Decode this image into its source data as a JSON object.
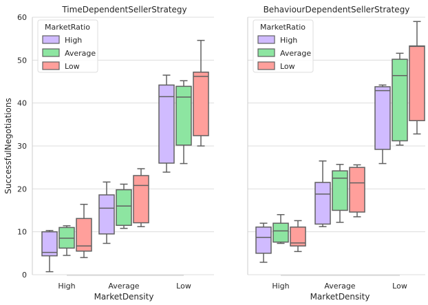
{
  "chart_data": {
    "type": "box",
    "ylabel": "SuccessfulNegotiations",
    "xlabel": "MarketDensity",
    "ylim": [
      0,
      60
    ],
    "yticks": [
      0,
      10,
      20,
      30,
      40,
      50,
      60
    ],
    "categories": [
      "High",
      "Average",
      "Low"
    ],
    "grid": "horizontal",
    "legend": {
      "title": "MarketRatio",
      "placement": "top-left",
      "entries": [
        "High",
        "Average",
        "Low"
      ]
    },
    "colors": {
      "High": "#d0bbff",
      "Average": "#8de5a1",
      "Low": "#ff9f9b",
      "line": "#606060",
      "grid": "#dddddd"
    },
    "panels": [
      {
        "title": "TimeDependentSellerStrategy",
        "boxes": [
          {
            "density": "High",
            "ratio": "High",
            "min": 0.7,
            "q1": 4.4,
            "median": 5.2,
            "q3": 10.0,
            "max": 10.3
          },
          {
            "density": "High",
            "ratio": "Average",
            "min": 4.5,
            "q1": 6.2,
            "median": 8.5,
            "q3": 11.0,
            "max": 11.4
          },
          {
            "density": "High",
            "ratio": "Low",
            "min": 4.0,
            "q1": 5.5,
            "median": 6.7,
            "q3": 13.1,
            "max": 16.4
          },
          {
            "density": "Average",
            "ratio": "High",
            "min": 7.3,
            "q1": 9.5,
            "median": 15.5,
            "q3": 18.6,
            "max": 21.6
          },
          {
            "density": "Average",
            "ratio": "Average",
            "min": 10.8,
            "q1": 11.5,
            "median": 16.0,
            "q3": 19.8,
            "max": 21.1
          },
          {
            "density": "Average",
            "ratio": "Low",
            "min": 11.2,
            "q1": 12.1,
            "median": 20.8,
            "q3": 23.1,
            "max": 24.7
          },
          {
            "density": "Low",
            "ratio": "High",
            "min": 23.9,
            "q1": 26.0,
            "median": 41.5,
            "q3": 44.2,
            "max": 46.5
          },
          {
            "density": "Low",
            "ratio": "Average",
            "min": 25.9,
            "q1": 30.2,
            "median": 41.4,
            "q3": 43.9,
            "max": 45.2
          },
          {
            "density": "Low",
            "ratio": "Low",
            "min": 30.0,
            "q1": 32.4,
            "median": 46.2,
            "q3": 47.2,
            "max": 54.6
          }
        ]
      },
      {
        "title": "BehaviourDependentSellerStrategy",
        "boxes": [
          {
            "density": "High",
            "ratio": "High",
            "min": 2.9,
            "q1": 5.0,
            "median": 8.7,
            "q3": 11.1,
            "max": 12.0
          },
          {
            "density": "High",
            "ratio": "Average",
            "min": 7.3,
            "q1": 7.6,
            "median": 10.2,
            "q3": 12.0,
            "max": 14.0
          },
          {
            "density": "High",
            "ratio": "Low",
            "min": 5.4,
            "q1": 6.7,
            "median": 7.4,
            "q3": 11.1,
            "max": 12.6
          },
          {
            "density": "Average",
            "ratio": "High",
            "min": 11.2,
            "q1": 11.8,
            "median": 18.8,
            "q3": 21.5,
            "max": 26.5
          },
          {
            "density": "Average",
            "ratio": "Average",
            "min": 12.2,
            "q1": 15.0,
            "median": 22.5,
            "q3": 24.2,
            "max": 25.7
          },
          {
            "density": "Average",
            "ratio": "Low",
            "min": 13.5,
            "q1": 14.6,
            "median": 21.4,
            "q3": 25.0,
            "max": 25.6
          },
          {
            "density": "Low",
            "ratio": "High",
            "min": 25.9,
            "q1": 29.2,
            "median": 42.9,
            "q3": 43.8,
            "max": 44.2
          },
          {
            "density": "Low",
            "ratio": "Average",
            "min": 30.2,
            "q1": 31.2,
            "median": 46.4,
            "q3": 50.2,
            "max": 51.6
          },
          {
            "density": "Low",
            "ratio": "Low",
            "min": 32.8,
            "q1": 35.9,
            "median": 53.2,
            "q3": 53.3,
            "max": 59.0
          }
        ]
      }
    ]
  }
}
